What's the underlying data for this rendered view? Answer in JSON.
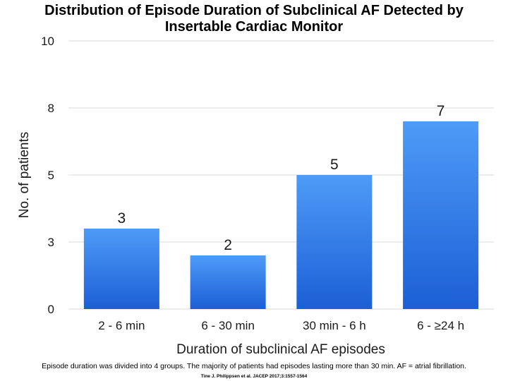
{
  "slide": {
    "title_line1": "Distribution of Episode Duration of Subclinical AF Detected by",
    "title_line2": "Insertable Cardiac Monitor",
    "caption": "Episode duration was divided into 4 groups. The majority of patients had episodes lasting more than 30 min. AF = atrial fibrillation.",
    "citation": "Tine J. Philippsen et al. JACEP 2017;3:1557-1564"
  },
  "colors": {
    "bar_top": "#4e9bf7",
    "bar_bottom": "#1c5fd6",
    "grid": "#d9d9d9",
    "axis_text": "#1a1a1a"
  },
  "chart_data": {
    "type": "bar",
    "title": "",
    "xlabel": "Duration of subclinical AF episodes",
    "ylabel": "No. of patients",
    "categories": [
      "2 - 6 min",
      "6 - 30 min",
      "30 min - 6 h",
      "6 - ≥24 h"
    ],
    "values": [
      3,
      2,
      5,
      7
    ],
    "data_labels": [
      "3",
      "2",
      "5",
      "7"
    ],
    "ylim": [
      0,
      10
    ],
    "yticks": [
      0,
      2.5,
      5,
      7.5,
      10
    ],
    "ytick_labels": [
      "0",
      "3",
      "5",
      "8",
      "10"
    ],
    "grid": true,
    "legend": "none"
  }
}
